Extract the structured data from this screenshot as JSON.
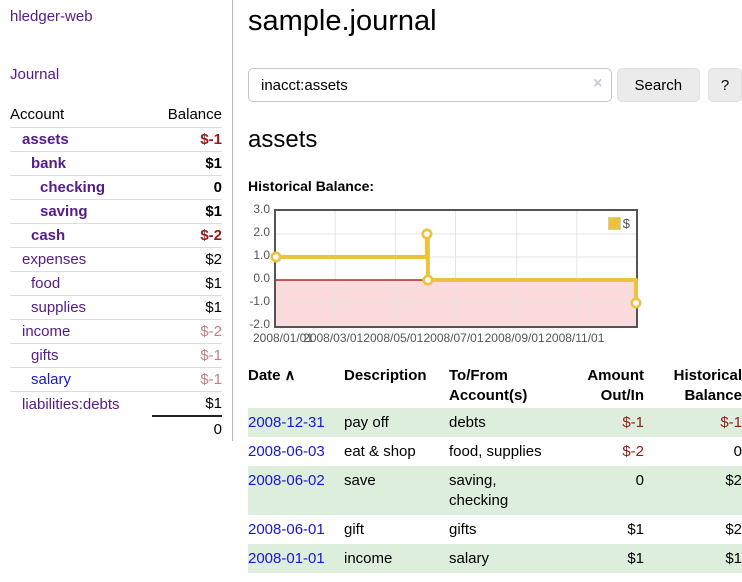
{
  "app": {
    "title": "hledger-web"
  },
  "nav": {
    "journal": "Journal"
  },
  "sidebar": {
    "header": {
      "account": "Account",
      "balance": "Balance"
    },
    "accounts": [
      {
        "name": "assets",
        "indent": 1,
        "bold": true,
        "balance": "$-1"
      },
      {
        "name": "bank",
        "indent": 2,
        "bold": true,
        "balance": "$1"
      },
      {
        "name": "checking",
        "indent": 3,
        "bold": true,
        "balance": "0"
      },
      {
        "name": "saving",
        "indent": 3,
        "bold": true,
        "balance": "$1"
      },
      {
        "name": "cash",
        "indent": 2,
        "bold": true,
        "balance": "$-2"
      },
      {
        "name": "expenses",
        "indent": 1,
        "bold": false,
        "balance": "$2"
      },
      {
        "name": "food",
        "indent": 2,
        "bold": false,
        "balance": "$1"
      },
      {
        "name": "supplies",
        "indent": 2,
        "bold": false,
        "balance": "$1"
      },
      {
        "name": "income",
        "indent": 1,
        "bold": false,
        "balance": "$-2",
        "muted": true
      },
      {
        "name": "gifts",
        "indent": 2,
        "bold": false,
        "balance": "$-1",
        "muted": true
      },
      {
        "name": "salary",
        "indent": 2,
        "bold": false,
        "balance": "$-1",
        "muted": true,
        "unvisited": true
      },
      {
        "name": "liabilities:debts",
        "indent": 1,
        "bold": false,
        "balance": "$1"
      }
    ],
    "total": "0"
  },
  "header": {
    "title": "sample.journal"
  },
  "search": {
    "value": "inacct:assets",
    "clear_icon": "×",
    "button": "Search",
    "help": "?"
  },
  "account_page": {
    "title": "assets",
    "chart_label": "Historical Balance:"
  },
  "chart_data": {
    "type": "line",
    "steps": true,
    "title": "Historical Balance",
    "series": [
      {
        "name": "$",
        "color": "#EDC240",
        "points": [
          [
            "2008-01-01",
            1
          ],
          [
            "2008-06-02",
            2
          ],
          [
            "2008-06-03",
            0
          ],
          [
            "2008-12-31",
            -1
          ]
        ]
      }
    ],
    "x_range": [
      "2008-01-01",
      "2008-12-31"
    ],
    "x_ticks": [
      "2008/01/01",
      "2008/03/01",
      "2008/05/01",
      "2008/07/01",
      "2008/09/01",
      "2008/11/01"
    ],
    "y_ticks": [
      "3.0",
      "2.0",
      "1.0",
      "0.0",
      "-1.0",
      "-2.0"
    ],
    "ylim": [
      -2,
      3
    ],
    "grid": true,
    "legend": "$",
    "legend_position": "top-right",
    "negative_fill": "#fbdbdb",
    "zero_line_color": "#a40000"
  },
  "register": {
    "columns": [
      "Date",
      "Description",
      "To/From Account(s)",
      "Amount Out/In",
      "Historical Balance"
    ],
    "sort_icon": "∧",
    "rows": [
      {
        "date": "2008-12-31",
        "description": "pay off",
        "accounts": "debts",
        "amount": "$-1",
        "balance": "$-1"
      },
      {
        "date": "2008-06-03",
        "description": "eat & shop",
        "accounts": "food, supplies",
        "amount": "$-2",
        "balance": "0"
      },
      {
        "date": "2008-06-02",
        "description": "save",
        "accounts": "saving, checking",
        "amount": "0",
        "balance": "$2"
      },
      {
        "date": "2008-06-01",
        "description": "gift",
        "accounts": "gifts",
        "amount": "$1",
        "balance": "$2"
      },
      {
        "date": "2008-01-01",
        "description": "income",
        "accounts": "salary",
        "amount": "$1",
        "balance": "$1"
      }
    ]
  },
  "colors": {
    "purple": "#551a8b",
    "blue": "#1616dd",
    "neg": "#951717",
    "neg_muted": "#bf8080",
    "row_green": "#ddeedd",
    "gold": "#EDC240",
    "grid": "#e4e4e4",
    "axis_text": "#545454"
  }
}
